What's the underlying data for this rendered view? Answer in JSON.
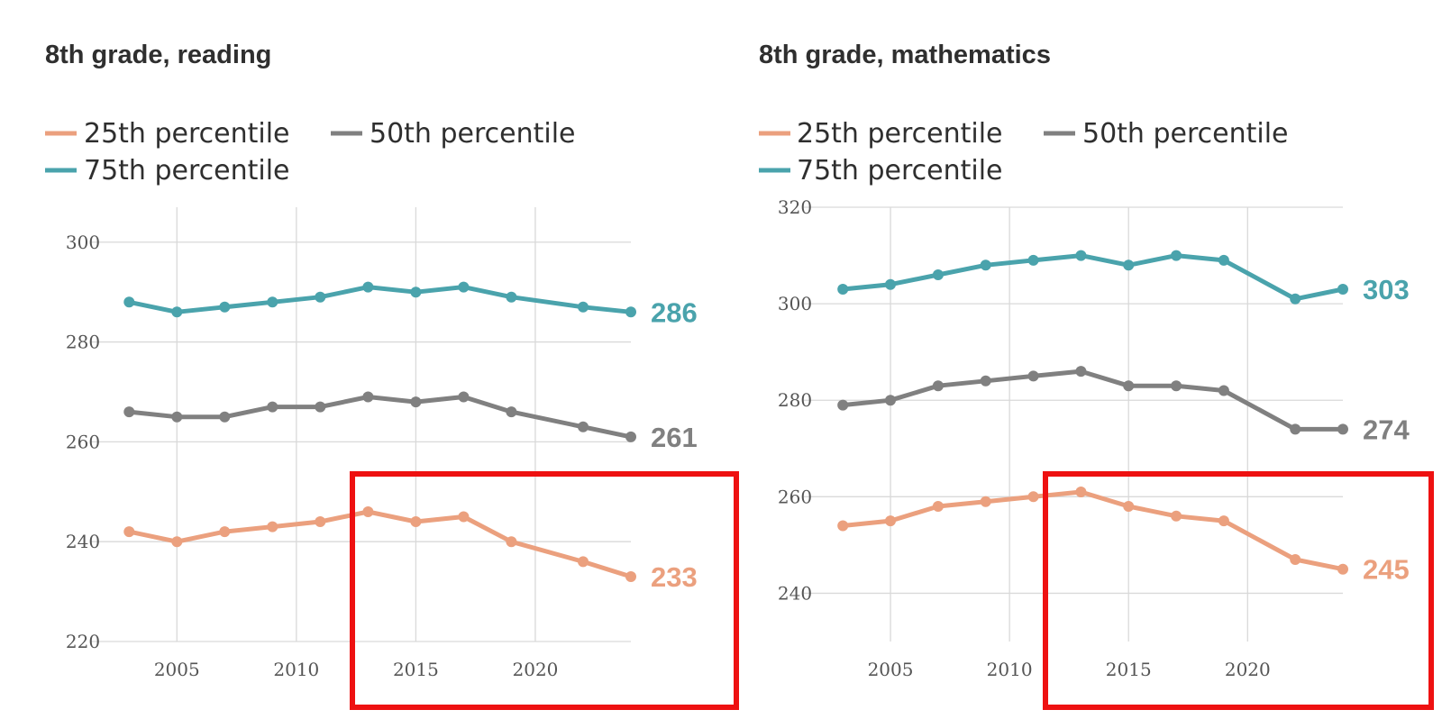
{
  "chart_data": [
    {
      "type": "line",
      "title": "8th grade, reading",
      "xlabel": "",
      "ylabel": "",
      "x": [
        2003,
        2005,
        2007,
        2009,
        2011,
        2013,
        2015,
        2017,
        2019,
        2022,
        2024
      ],
      "x_ticks": [
        "2005",
        "2010",
        "2015",
        "2020"
      ],
      "y_ticks": [
        "220",
        "240",
        "260",
        "280",
        "300"
      ],
      "ylim": [
        220,
        307
      ],
      "xlim": [
        2002.5,
        2024
      ],
      "grid": true,
      "legend": "top-left",
      "series": [
        {
          "name": "25th percentile",
          "color": "#eba07e",
          "values": [
            242,
            240,
            242,
            243,
            244,
            246,
            244,
            245,
            240,
            236,
            233
          ],
          "end_label": "233"
        },
        {
          "name": "50th percentile",
          "color": "#808080",
          "values": [
            266,
            265,
            265,
            267,
            267,
            269,
            268,
            269,
            266,
            263,
            261
          ],
          "end_label": "261"
        },
        {
          "name": "75th percentile",
          "color": "#4aa3ac",
          "values": [
            288,
            286,
            287,
            288,
            289,
            291,
            290,
            291,
            289,
            287,
            286
          ],
          "end_label": "286"
        }
      ],
      "highlight_range": [
        2012,
        2024
      ]
    },
    {
      "type": "line",
      "title": "8th grade, mathematics",
      "xlabel": "",
      "ylabel": "",
      "x": [
        2003,
        2005,
        2007,
        2009,
        2011,
        2013,
        2015,
        2017,
        2019,
        2022,
        2024
      ],
      "x_ticks": [
        "2005",
        "2010",
        "2015",
        "2020"
      ],
      "y_ticks": [
        "240",
        "260",
        "280",
        "300",
        "320"
      ],
      "ylim": [
        230,
        320
      ],
      "xlim": [
        2002.5,
        2024
      ],
      "grid": true,
      "legend": "top-left",
      "series": [
        {
          "name": "25th percentile",
          "color": "#eba07e",
          "values": [
            254,
            255,
            258,
            259,
            260,
            261,
            258,
            256,
            255,
            247,
            245
          ],
          "end_label": "245"
        },
        {
          "name": "50th percentile",
          "color": "#808080",
          "values": [
            279,
            280,
            283,
            284,
            285,
            286,
            283,
            283,
            282,
            274,
            274
          ],
          "end_label": "274"
        },
        {
          "name": "75th percentile",
          "color": "#4aa3ac",
          "values": [
            303,
            304,
            306,
            308,
            309,
            310,
            308,
            310,
            309,
            301,
            303
          ],
          "end_label": "303"
        }
      ],
      "highlight_range": [
        2012,
        2024
      ]
    }
  ]
}
